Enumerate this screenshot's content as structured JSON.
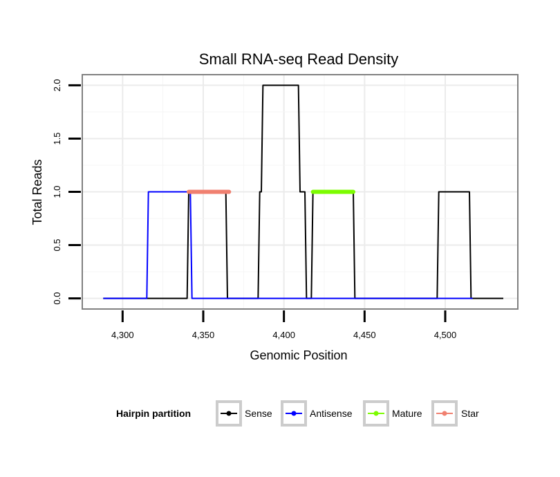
{
  "chart_data": {
    "type": "line",
    "title": "Small RNA-seq Read Density",
    "xlabel": "Genomic Position",
    "ylabel": "Total Reads",
    "xlim": [
      4275,
      4545
    ],
    "ylim": [
      -0.1,
      2.1
    ],
    "x_ticks": [
      4300,
      4350,
      4400,
      4450,
      4500
    ],
    "x_tick_labels": [
      "4,300",
      "4,350",
      "4,400",
      "4,450",
      "4,500"
    ],
    "y_ticks": [
      0,
      0.5,
      1,
      1.5,
      2
    ],
    "y_tick_labels": [
      "0.0",
      "0.5",
      "1.0",
      "1.5",
      "2.0"
    ],
    "grid": true,
    "legend": {
      "title": "Hairpin partition",
      "position": "bottom",
      "entries": [
        "Sense",
        "Antisense",
        "Mature",
        "Star"
      ]
    },
    "series": [
      {
        "name": "Sense",
        "color": "#000000",
        "points": [
          [
            4288,
            0
          ],
          [
            4340,
            0
          ],
          [
            4341,
            1
          ],
          [
            4364,
            1
          ],
          [
            4365,
            0
          ],
          [
            4384,
            0
          ],
          [
            4385,
            1
          ],
          [
            4386,
            1
          ],
          [
            4387,
            2
          ],
          [
            4409,
            2
          ],
          [
            4410,
            1
          ],
          [
            4413,
            1
          ],
          [
            4414,
            0
          ],
          [
            4417,
            0
          ],
          [
            4418,
            1
          ],
          [
            4443,
            1
          ],
          [
            4444,
            0
          ],
          [
            4495,
            0
          ],
          [
            4496,
            1
          ],
          [
            4515,
            1
          ],
          [
            4516,
            0
          ],
          [
            4536,
            0
          ]
        ]
      },
      {
        "name": "Antisense",
        "color": "#0000ff",
        "points": [
          [
            4288,
            0
          ],
          [
            4315,
            0
          ],
          [
            4316,
            1
          ],
          [
            4342,
            1
          ],
          [
            4343,
            0
          ],
          [
            4517,
            0
          ]
        ]
      },
      {
        "name": "Mature",
        "color": "#7cfc00",
        "points": [
          [
            4418,
            1
          ],
          [
            4443,
            1
          ]
        ]
      },
      {
        "name": "Star",
        "color": "#f08070",
        "points": [
          [
            4341,
            1
          ],
          [
            4366,
            1
          ]
        ]
      }
    ]
  }
}
